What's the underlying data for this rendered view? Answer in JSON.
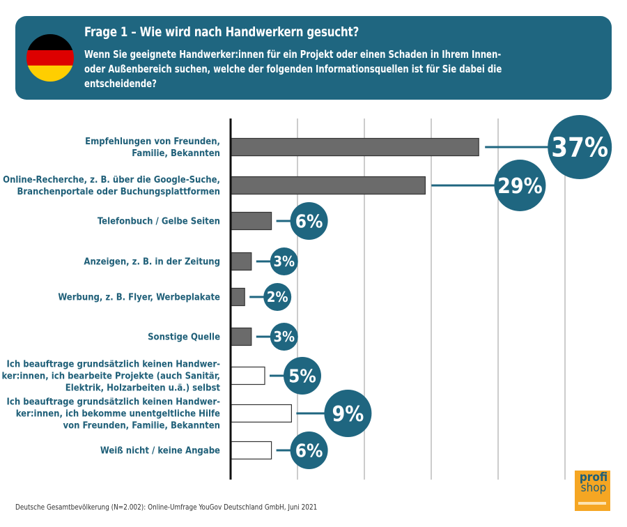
{
  "header": {
    "title": "Frage 1 – Wie wird nach Handwerkern gesucht?",
    "subtitle_lines": [
      "Wenn Sie geeignete Handwerker:innen für ein Projekt oder einen Schaden in Ihrem Innen-",
      "oder Außenbereich suchen, welche der folgenden Informationsquellen ist für Sie dabei die",
      "entscheidende?"
    ],
    "flag_colors": [
      "#000000",
      "#dd0000",
      "#ffce00"
    ],
    "box_color": "#1f6680"
  },
  "chart_data": {
    "type": "bar",
    "orientation": "horizontal",
    "title": "Frage 1 – Wie wird nach Handwerkern gesucht?",
    "xlabel": "",
    "ylabel": "",
    "xlim": [
      0,
      50
    ],
    "gridlines": [
      10,
      20,
      30,
      40,
      50
    ],
    "grid": true,
    "unit": "%",
    "categories": [
      [
        "Empfehlungen von Freunden,",
        "Familie, Bekannten"
      ],
      [
        "Online-Recherche, z. B. über die Google-Suche,",
        "Branchenportale oder Buchungsplattformen"
      ],
      [
        "Telefonbuch / Gelbe Seiten"
      ],
      [
        "Anzeigen, z. B. in der Zeitung"
      ],
      [
        "Werbung, z. B. Flyer, Werbeplakate"
      ],
      [
        "Sonstige Quelle"
      ],
      [
        "Ich beauftrage grundsätzlich keinen Handwer-",
        "ker:innen, ich bearbeite Projekte (auch Sanitär,",
        "Elektrik, Holzarbeiten u.ä.) selbst"
      ],
      [
        "Ich beauftrage grundsätzlich keinen Handwer-",
        "ker:innen, ich bekomme unentgeltliche Hilfe",
        "von Freunden, Familie, Bekannten"
      ],
      [
        "Weiß nicht / keine Angabe"
      ]
    ],
    "values": [
      37,
      29,
      6,
      3,
      2,
      3,
      5,
      9,
      6
    ],
    "value_labels": [
      "37%",
      "29%",
      "6%",
      "3%",
      "2%",
      "3%",
      "5%",
      "9%",
      "6%"
    ],
    "bar_style": [
      "filled",
      "filled",
      "filled",
      "filled",
      "filled",
      "filled",
      "outline",
      "outline",
      "outline"
    ],
    "colors": {
      "bar_fill": "#6b6b6b",
      "bar_outline": "#333333",
      "bubble": "#1f6680",
      "label_text": "#1f5f78",
      "grid": "#999999"
    }
  },
  "footer": {
    "source": "Deutsche Gesamtbevölkerung (N=2.002): Online-Umfrage YouGov Deutschland GmbH, Juni 2021"
  },
  "logo": {
    "line1": "profi",
    "line2": "shop"
  }
}
